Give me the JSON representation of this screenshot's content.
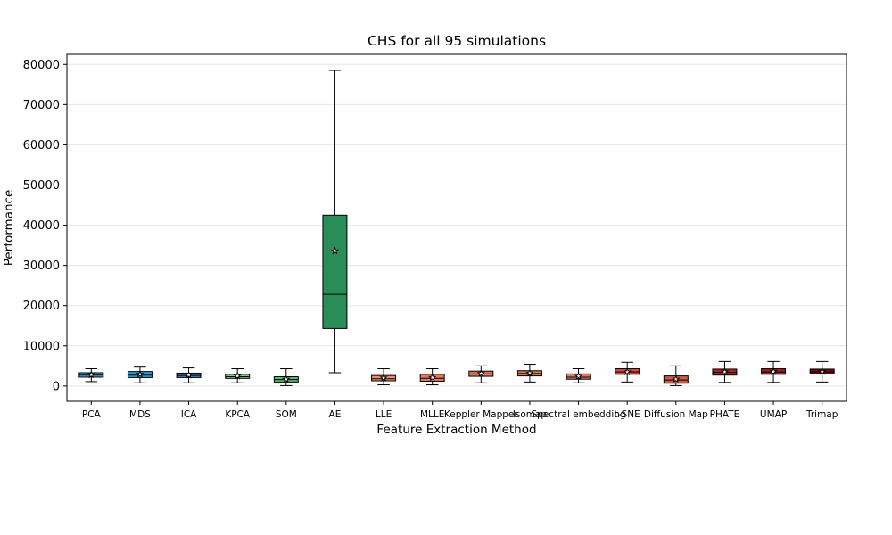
{
  "chart_data": {
    "type": "box",
    "title": "CHS for all 95 simulations",
    "xlabel": "Feature Extraction Method",
    "ylabel": "Performance",
    "ylim": [
      -3800,
      82500
    ],
    "yticks": [
      0,
      10000,
      20000,
      30000,
      40000,
      50000,
      60000,
      70000,
      80000
    ],
    "grid": "horizontal",
    "legend": "none",
    "mean_marker": "star",
    "categories": [
      "PCA",
      "MDS",
      "ICA",
      "KPCA",
      "SOM",
      "AE",
      "LLE",
      "MLLE",
      "Keppler Mapper",
      "Isomap",
      "Spectral embedding",
      "t-SNE",
      "Diffusion Map",
      "PHATE",
      "UMAP",
      "Trimap"
    ],
    "boxes": [
      {
        "whislo": 1100,
        "q1": 2200,
        "med": 2700,
        "q3": 3300,
        "whishi": 4300,
        "mean": 2800,
        "color": "#5aa8dc"
      },
      {
        "whislo": 800,
        "q1": 2100,
        "med": 2700,
        "q3": 3600,
        "whishi": 4700,
        "mean": 2900,
        "color": "#2f9fdc"
      },
      {
        "whislo": 800,
        "q1": 2100,
        "med": 2600,
        "q3": 3200,
        "whishi": 4500,
        "mean": 2700,
        "color": "#3c7fb8"
      },
      {
        "whislo": 800,
        "q1": 1900,
        "med": 2300,
        "q3": 2900,
        "whishi": 4300,
        "mean": 2500,
        "color": "#7cc98c"
      },
      {
        "whislo": 100,
        "q1": 1000,
        "med": 1600,
        "q3": 2300,
        "whishi": 4300,
        "mean": 1700,
        "color": "#5cb870"
      },
      {
        "whislo": 3300,
        "q1": 14300,
        "med": 22800,
        "q3": 42500,
        "whishi": 78500,
        "mean": 33600,
        "color": "#2a8d57"
      },
      {
        "whislo": 300,
        "q1": 1300,
        "med": 1800,
        "q3": 2600,
        "whishi": 4300,
        "mean": 2000,
        "color": "#e8906f"
      },
      {
        "whislo": 300,
        "q1": 1200,
        "med": 1900,
        "q3": 2900,
        "whishi": 4300,
        "mean": 2100,
        "color": "#e27a5c"
      },
      {
        "whislo": 800,
        "q1": 2400,
        "med": 3000,
        "q3": 3700,
        "whishi": 5000,
        "mean": 3100,
        "color": "#d9775a"
      },
      {
        "whislo": 1000,
        "q1": 2500,
        "med": 3100,
        "q3": 3800,
        "whishi": 5400,
        "mean": 3200,
        "color": "#d5765d"
      },
      {
        "whislo": 800,
        "q1": 1700,
        "med": 2200,
        "q3": 3000,
        "whishi": 4300,
        "mean": 2400,
        "color": "#dc7e63"
      },
      {
        "whislo": 1000,
        "q1": 2900,
        "med": 3500,
        "q3": 4300,
        "whishi": 5900,
        "mean": 3500,
        "color": "#d24a35"
      },
      {
        "whislo": 100,
        "q1": 700,
        "med": 1500,
        "q3": 2500,
        "whishi": 5000,
        "mean": 1700,
        "color": "#d05a48"
      },
      {
        "whislo": 900,
        "q1": 2700,
        "med": 3400,
        "q3": 4200,
        "whishi": 6100,
        "mean": 3500,
        "color": "#a8261f"
      },
      {
        "whislo": 900,
        "q1": 2900,
        "med": 3500,
        "q3": 4300,
        "whishi": 6100,
        "mean": 3600,
        "color": "#992020"
      },
      {
        "whislo": 1000,
        "q1": 3000,
        "med": 3500,
        "q3": 4200,
        "whishi": 6100,
        "mean": 3600,
        "color": "#6e1010"
      }
    ]
  }
}
